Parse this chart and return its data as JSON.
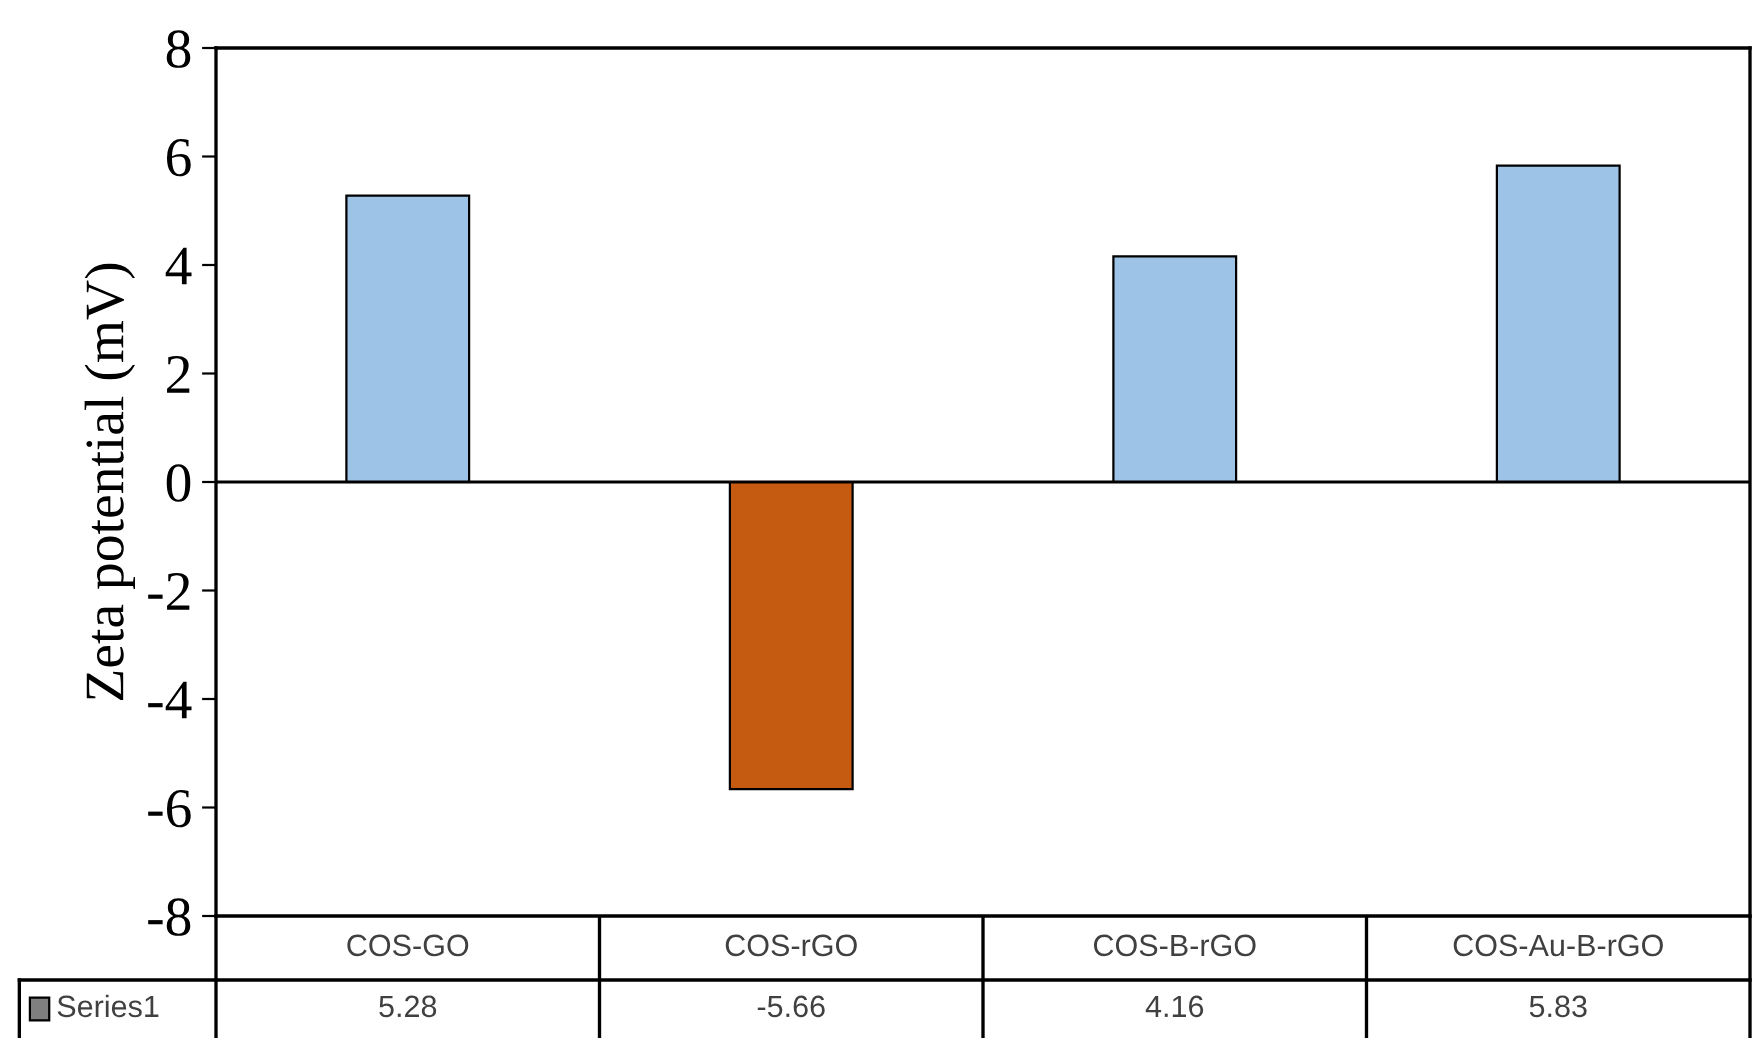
{
  "chart_data": {
    "type": "bar",
    "ylabel": "Zeta potential (mV)",
    "categories": [
      "COS-GO",
      "COS-rGO",
      "COS-B-rGO",
      "COS-Au-B-rGO"
    ],
    "series": [
      {
        "name": "Series1",
        "color": "#7f7f7f",
        "colors": [
          "#9dc3e6",
          "#c55a11",
          "#9dc3e6",
          "#9dc3e6"
        ],
        "values": [
          5.28,
          -5.66,
          4.16,
          5.83
        ]
      }
    ],
    "ylim": [
      -8,
      8
    ],
    "yticks": [
      {
        "value": -8,
        "label": "-8"
      },
      {
        "value": -6,
        "label": "-6"
      },
      {
        "value": -4,
        "label": "-4"
      },
      {
        "value": -2,
        "label": "-2"
      },
      0,
      2,
      4,
      6,
      8
    ],
    "data_labels": true
  }
}
